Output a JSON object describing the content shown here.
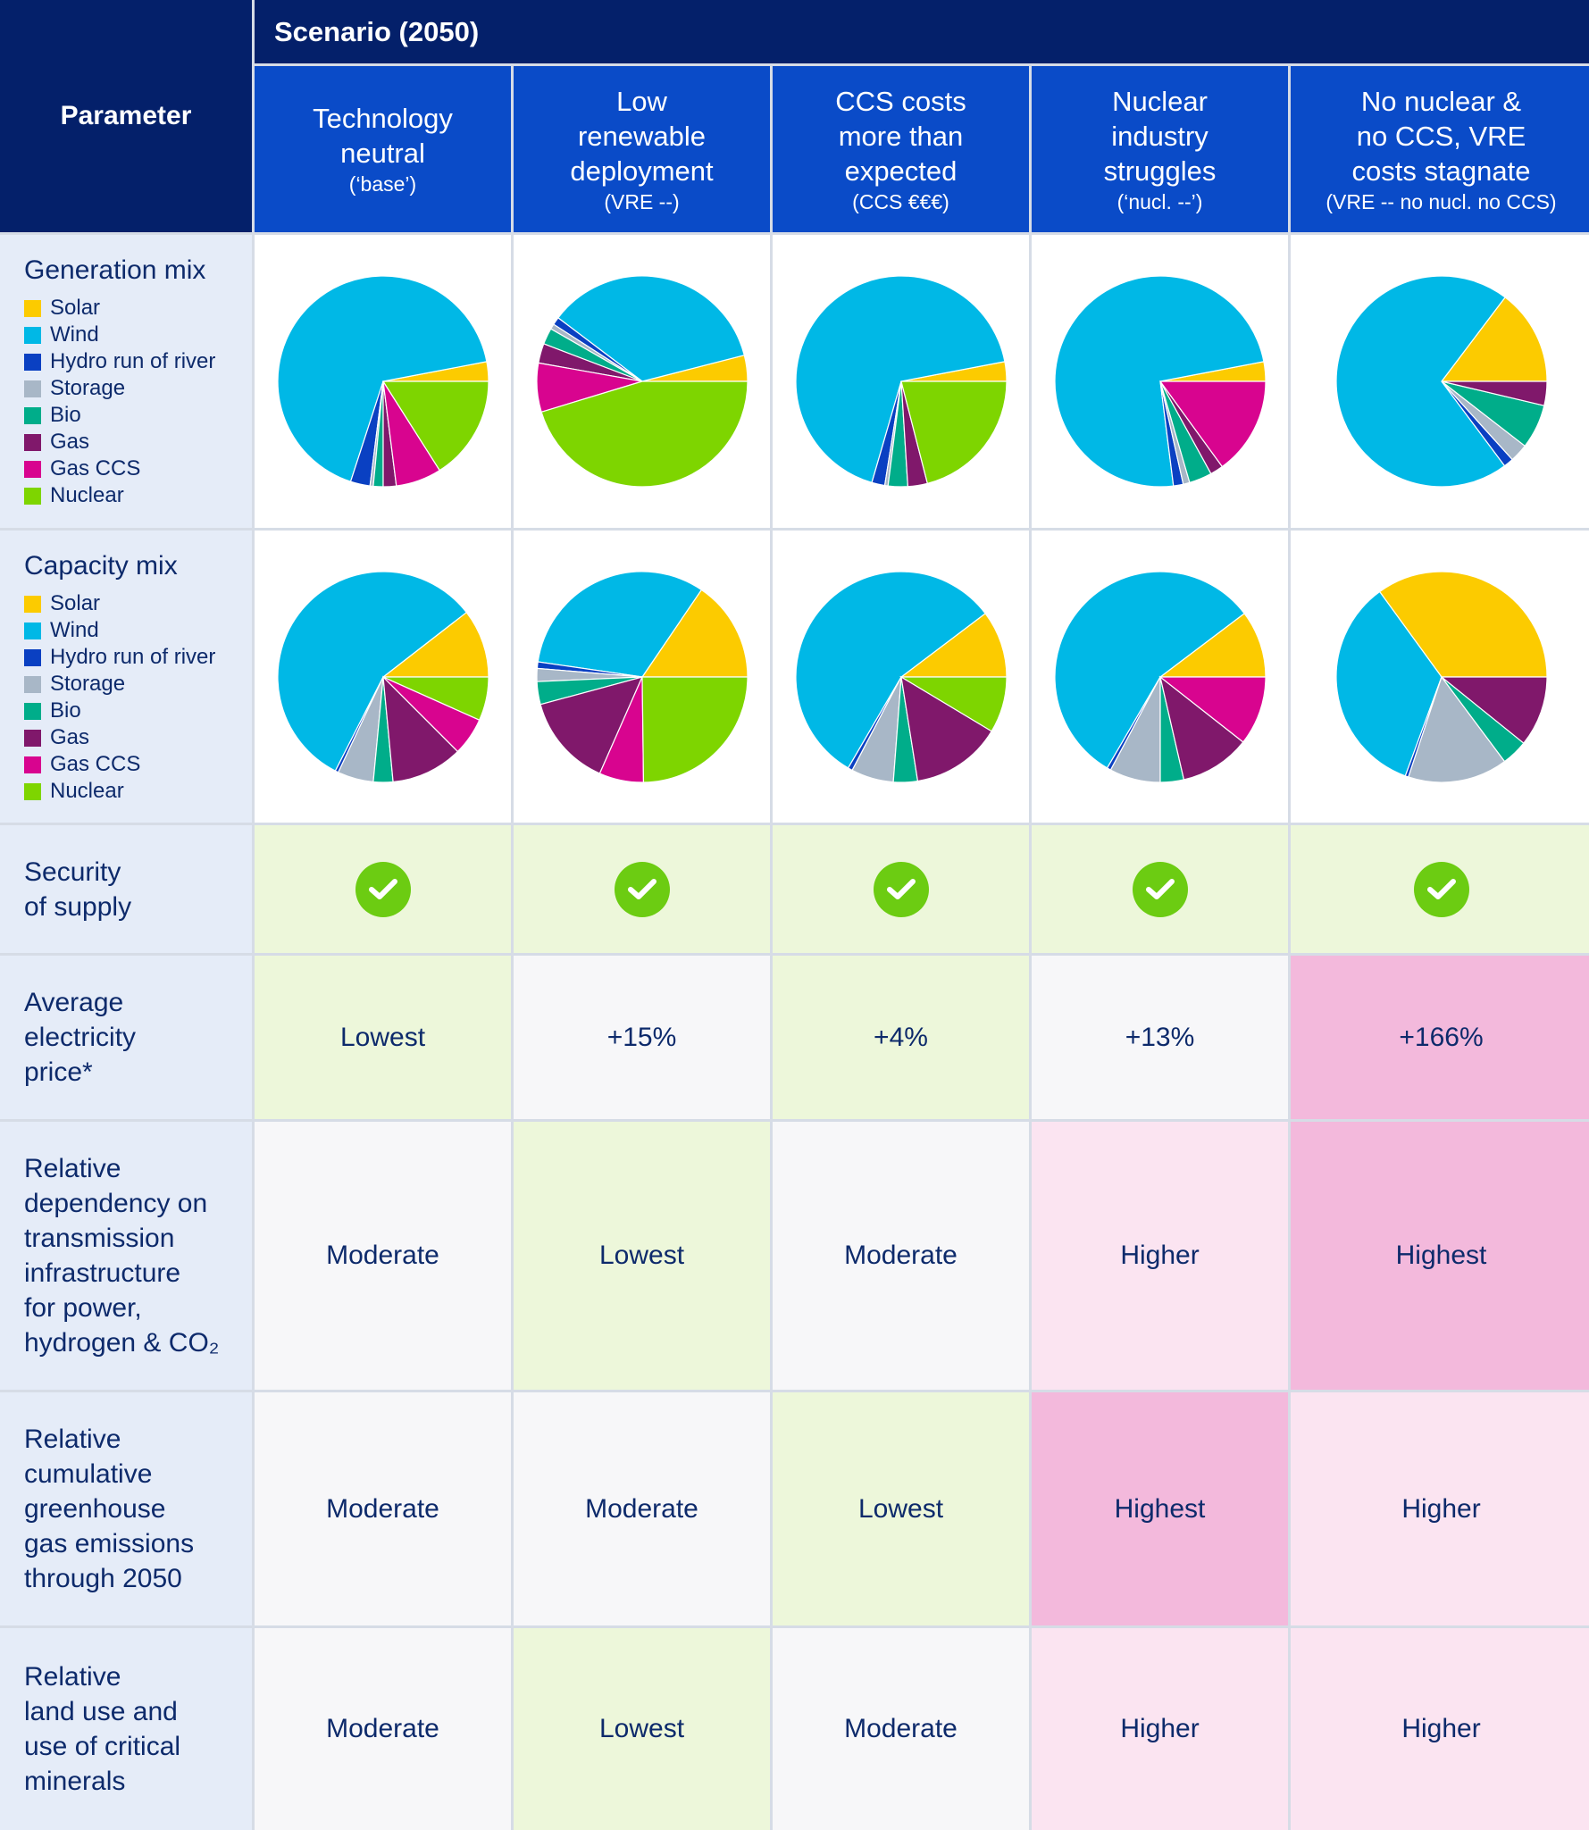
{
  "header": {
    "parameter": "Parameter",
    "scenario": "Scenario (2050)",
    "scenarios": [
      {
        "title": [
          "Technology",
          "neutral"
        ],
        "note": "(‘base’)"
      },
      {
        "title": [
          "Low",
          "renewable",
          "deployment"
        ],
        "note": "(VRE --)"
      },
      {
        "title": [
          "CCS costs",
          "more than",
          "expected"
        ],
        "note": "(CCS €€€)"
      },
      {
        "title": [
          "Nuclear",
          "industry",
          "struggles"
        ],
        "note": "(‘nucl. --’)"
      },
      {
        "title": [
          "No nuclear &",
          "no CCS, VRE",
          "costs stagnate"
        ],
        "note": "(VRE -- no nucl. no CCS)"
      }
    ]
  },
  "legend": [
    "Solar",
    "Wind",
    "Hydro run of river",
    "Storage",
    "Bio",
    "Gas",
    "Gas CCS",
    "Nuclear"
  ],
  "colors": {
    "Solar": "#fccb00",
    "Wind": "#00b8e6",
    "Hydro run of river": "#0a40c2",
    "Storage": "#a8b7c7",
    "Bio": "#00ad8a",
    "Gas": "#80186b",
    "Gas CCS": "#d8048f",
    "Nuclear": "#7ed500"
  },
  "rows": {
    "generation": "Generation mix",
    "capacity": "Capacity mix",
    "security": [
      "Security",
      "of supply"
    ],
    "price": [
      "Average",
      "electricity",
      "price*"
    ],
    "dependency": [
      "Relative",
      "dependency on",
      "transmission",
      "infrastructure",
      "for power,",
      "hydrogen & CO₂"
    ],
    "ghg": [
      "Relative",
      "cumulative",
      "greenhouse",
      "gas emissions",
      "through 2050"
    ],
    "land": [
      "Relative",
      "land use and",
      "use of critical",
      "minerals"
    ]
  },
  "security_values": [
    true,
    true,
    true,
    true,
    true
  ],
  "price_values": [
    "Lowest",
    "+15%",
    "+4%",
    "+13%",
    "+166%"
  ],
  "dependency_values": [
    "Moderate",
    "Lowest",
    "Moderate",
    "Higher",
    "Highest"
  ],
  "ghg_values": [
    "Moderate",
    "Moderate",
    "Lowest",
    "Highest",
    "Higher"
  ],
  "land_values": [
    "Moderate",
    "Lowest",
    "Moderate",
    "Higher",
    "Higher"
  ],
  "chart_data": [
    {
      "type": "pie",
      "title": "Generation mix",
      "categories": [
        "Solar",
        "Wind",
        "Hydro run of river",
        "Storage",
        "Bio",
        "Gas",
        "Gas CCS",
        "Nuclear"
      ],
      "series": [
        {
          "values": [
            3,
            67,
            3,
            0.5,
            1.5,
            2,
            7,
            16
          ]
        },
        {
          "values": [
            4,
            35.7,
            1.2,
            0.8,
            2.5,
            3,
            7.5,
            45.3
          ]
        },
        {
          "values": [
            3,
            67.5,
            2,
            0.5,
            3,
            3,
            0,
            21
          ]
        },
        {
          "values": [
            3,
            74,
            1.5,
            1,
            3.5,
            2,
            15,
            0
          ]
        },
        {
          "values": [
            14.7,
            70.5,
            1.5,
            2.8,
            6.8,
            3.7,
            0,
            0
          ]
        }
      ]
    },
    {
      "type": "pie",
      "title": "Capacity mix",
      "categories": [
        "Solar",
        "Wind",
        "Hydro run of river",
        "Storage",
        "Bio",
        "Gas",
        "Gas CCS",
        "Nuclear"
      ],
      "series": [
        {
          "values": [
            10.5,
            57,
            0.5,
            5.5,
            3,
            11,
            5.8,
            6.7
          ]
        },
        {
          "values": [
            15.5,
            32.2,
            1,
            2,
            3.5,
            14.2,
            6.8,
            24.8
          ]
        },
        {
          "values": [
            10.3,
            56.3,
            0.7,
            6.5,
            3.7,
            13.9,
            0,
            8.6
          ]
        },
        {
          "values": [
            10.3,
            56.3,
            0.6,
            7.8,
            3.6,
            10.8,
            10.6,
            0
          ]
        },
        {
          "values": [
            35,
            34.4,
            0.5,
            15.3,
            4,
            10.8,
            0,
            0
          ]
        }
      ]
    }
  ]
}
